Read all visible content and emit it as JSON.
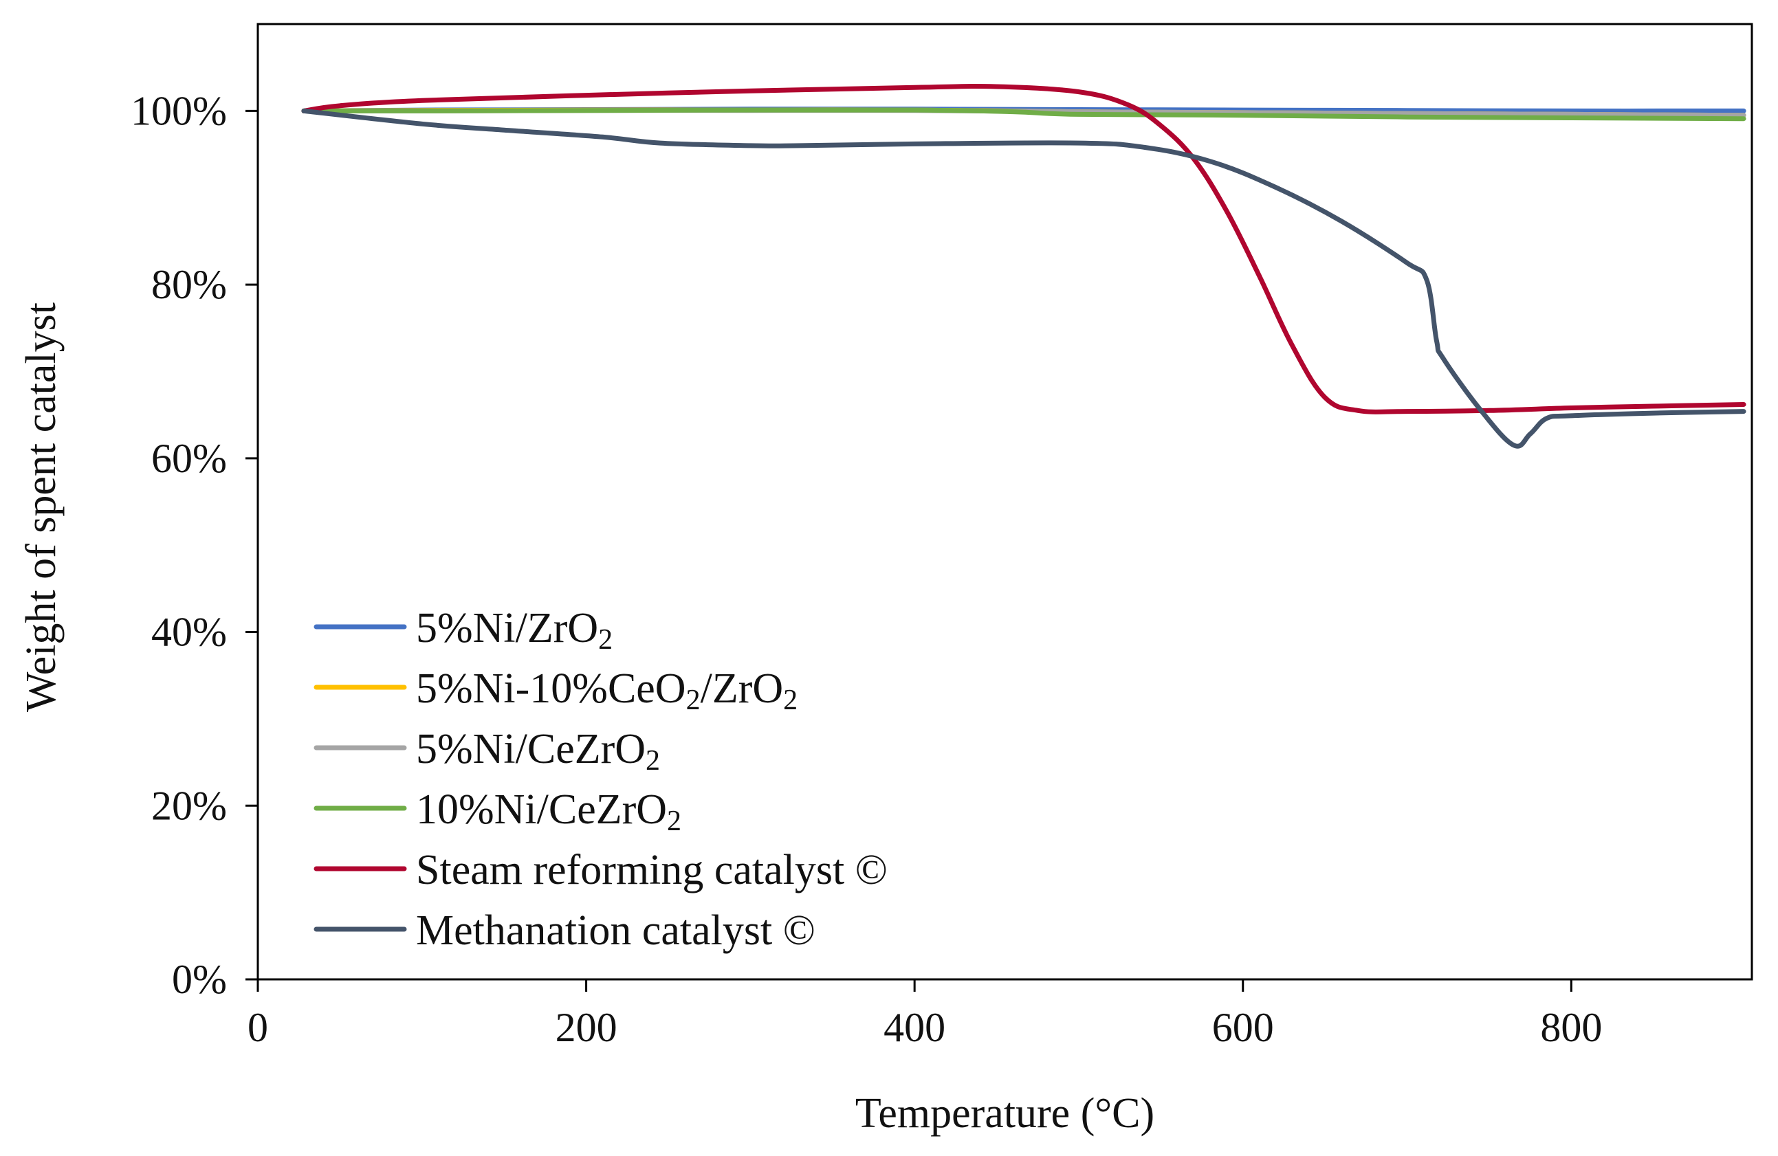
{
  "chart_data": {
    "type": "line",
    "title": "",
    "xlabel": "Temperature (°C)",
    "ylabel": "Weight of spent catalyst",
    "xlim": [
      0,
      910
    ],
    "ylim": [
      0,
      110
    ],
    "xticks": [
      0,
      200,
      400,
      600,
      800
    ],
    "yticks": [
      0,
      20,
      40,
      60,
      80,
      100
    ],
    "xtick_labels": [
      "0",
      "200",
      "400",
      "600",
      "800"
    ],
    "ytick_labels": [
      "0%",
      "20%",
      "40%",
      "60%",
      "80%",
      "100%"
    ],
    "grid": false,
    "legend_position": "bottom-left",
    "series": [
      {
        "name": "5%Ni/ZrO2",
        "label_parts": [
          "5%Ni/ZrO",
          "2"
        ],
        "color": "#4472c4",
        "x": [
          28,
          100,
          200,
          300,
          400,
          500,
          600,
          700,
          800,
          905
        ],
        "y": [
          100,
          100.1,
          100.15,
          100.2,
          100.2,
          100.15,
          100.1,
          100.05,
          100,
          100
        ]
      },
      {
        "name": "5%Ni-10%CeO2/ZrO2",
        "label_parts": [
          "5%Ni-10%CeO",
          "2",
          "/ZrO",
          "2"
        ],
        "color": "#ffc000",
        "x": [
          28,
          100,
          200,
          300,
          400,
          500,
          600,
          700,
          800,
          905
        ],
        "y": [
          100,
          100.05,
          100.1,
          100.1,
          100.1,
          99.9,
          99.8,
          99.7,
          99.6,
          99.5
        ]
      },
      {
        "name": "5%Ni/CeZrO2",
        "label_parts": [
          "5%Ni/CeZrO",
          "2"
        ],
        "color": "#a5a5a5",
        "x": [
          28,
          100,
          200,
          300,
          400,
          500,
          600,
          700,
          800,
          905
        ],
        "y": [
          100,
          100,
          100.05,
          100.05,
          100.05,
          99.9,
          99.8,
          99.7,
          99.6,
          99.5
        ]
      },
      {
        "name": "10%Ni/CeZrO2",
        "label_parts": [
          "10%Ni/CeZrO",
          "2"
        ],
        "color": "#70ad47",
        "x": [
          28,
          100,
          200,
          300,
          400,
          460,
          500,
          600,
          700,
          800,
          905
        ],
        "y": [
          100,
          100,
          100.05,
          100.1,
          100.1,
          99.9,
          99.6,
          99.5,
          99.3,
          99.2,
          99.1
        ]
      },
      {
        "name": "Steam reforming catalyst ©",
        "label_parts": [
          "Steam reforming catalyst ©"
        ],
        "color": "#b0062f",
        "x": [
          28,
          50,
          100,
          200,
          300,
          400,
          450,
          500,
          530,
          550,
          570,
          590,
          610,
          630,
          650,
          670,
          700,
          750,
          800,
          850,
          905
        ],
        "y": [
          100,
          100.6,
          101.2,
          101.8,
          102.3,
          102.7,
          102.8,
          102.2,
          100.7,
          98.3,
          94.5,
          88.5,
          81,
          73,
          67,
          65.5,
          65.4,
          65.5,
          65.8,
          66,
          66.2
        ]
      },
      {
        "name": "Methanation catalyst ©",
        "label_parts": [
          "Methanation catalyst ©"
        ],
        "color": "#44546a",
        "x": [
          28,
          100,
          150,
          210,
          245,
          300,
          330,
          400,
          500,
          540,
          580,
          620,
          660,
          700,
          712,
          718,
          722,
          745,
          765,
          775,
          785,
          800,
          850,
          905
        ],
        "y": [
          100,
          98.5,
          97.8,
          97,
          96.3,
          96,
          96,
          96.2,
          96.3,
          95.8,
          94.2,
          91.2,
          87.3,
          82.5,
          80.5,
          73.5,
          71.5,
          65.5,
          61.5,
          62.8,
          64.6,
          64.9,
          65.2,
          65.4
        ]
      }
    ]
  }
}
